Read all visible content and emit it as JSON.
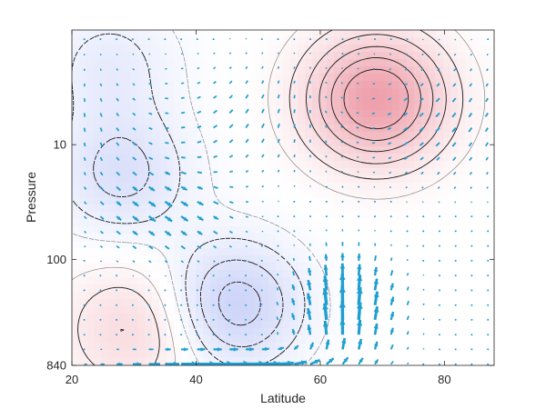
{
  "chart_data": {
    "type": "contour",
    "title": "",
    "xlabel": "Latitude",
    "ylabel": "Pressure",
    "xlim": [
      20,
      88
    ],
    "ylim": [
      840,
      1
    ],
    "y_scale": "log",
    "y_reversed": true,
    "grid": false,
    "legend": "none",
    "x_ticks": [
      20,
      40,
      60,
      80
    ],
    "x_tick_labels": [
      "20",
      "40",
      "60",
      "80"
    ],
    "y_ticks": [
      10,
      100,
      840
    ],
    "y_tick_labels": [
      "10",
      "100",
      "840"
    ],
    "colors": {
      "positive_fill": "#e8808f",
      "negative_fill": "#8c9cf0",
      "positive_contour": "#1a1a1a",
      "negative_contour": "#1a1a1a",
      "light_contour": "#8a8a8a",
      "vectors": "#1f9fcf",
      "axis": "#262626"
    },
    "field_features": [
      {
        "sign": "positive",
        "center_lat": 69,
        "center_p": 4,
        "amplitude": 1.0
      },
      {
        "sign": "negative",
        "center_lat": 46,
        "center_p": 250,
        "amplitude": 0.6
      },
      {
        "sign": "negative",
        "center_lat": 28,
        "center_p": 18,
        "amplitude": 0.4
      },
      {
        "sign": "positive",
        "center_lat": 30,
        "center_p": 400,
        "amplitude": 0.4
      },
      {
        "sign": "negative",
        "center_lat": 26,
        "center_p": 2,
        "amplitude": 0.25
      }
    ],
    "vector_features": [
      {
        "kind": "strong-lowlevel-poleward-flow",
        "lat_range": [
          20,
          62
        ],
        "p_range": [
          500,
          840
        ]
      },
      {
        "kind": "strong-ascent",
        "lat_range": [
          55,
          78
        ],
        "p_range": [
          100,
          840
        ]
      },
      {
        "kind": "weak-upper-flow",
        "lat_range": [
          20,
          88
        ],
        "p_range": [
          1,
          100
        ]
      }
    ]
  }
}
